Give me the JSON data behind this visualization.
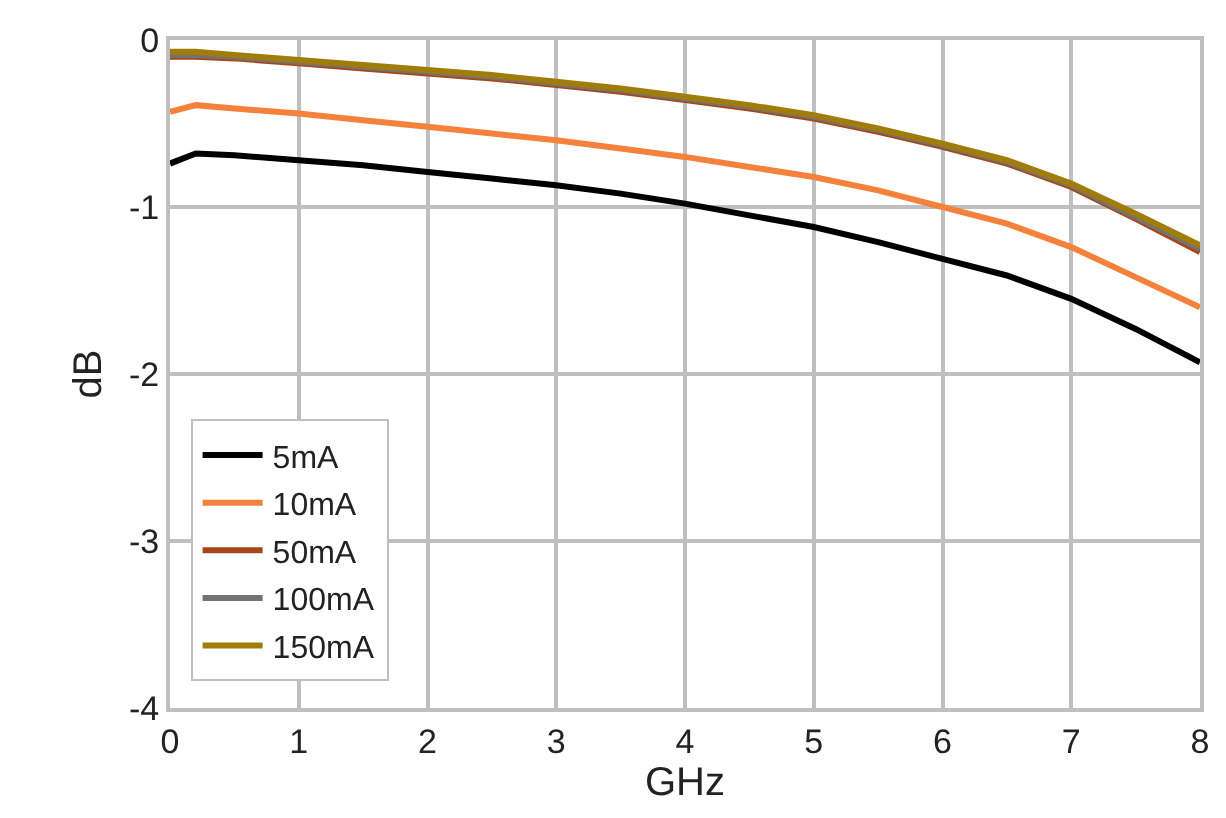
{
  "chart_data": {
    "type": "line",
    "xlabel": "GHz",
    "ylabel": "dB",
    "x": [
      0,
      0.2,
      0.5,
      1,
      1.5,
      2,
      2.5,
      3,
      3.5,
      4,
      4.5,
      5,
      5.5,
      6,
      6.5,
      7,
      7.5,
      8
    ],
    "xlim": [
      0,
      8
    ],
    "ylim": [
      -4,
      0
    ],
    "xticks": [
      0,
      1,
      2,
      3,
      4,
      5,
      6,
      7,
      8
    ],
    "yticks": [
      -4,
      -3,
      -2,
      -1,
      0
    ],
    "grid": true,
    "legend": "bottom left",
    "line_style": "solid",
    "marker": "none",
    "series": [
      {
        "name": "5mA",
        "color": "#000000",
        "values": [
          -0.74,
          -0.68,
          -0.69,
          -0.72,
          -0.75,
          -0.79,
          -0.83,
          -0.87,
          -0.92,
          -0.98,
          -1.05,
          -1.12,
          -1.21,
          -1.31,
          -1.41,
          -1.55,
          -1.73,
          -1.93
        ]
      },
      {
        "name": "10mA",
        "color": "#f4823c",
        "values": [
          -0.43,
          -0.39,
          -0.41,
          -0.44,
          -0.48,
          -0.52,
          -0.56,
          -0.6,
          -0.65,
          -0.7,
          -0.76,
          -0.82,
          -0.9,
          -1.0,
          -1.1,
          -1.24,
          -1.42,
          -1.6
        ]
      },
      {
        "name": "50mA",
        "color": "#a5471a",
        "values": [
          -0.1,
          -0.1,
          -0.11,
          -0.14,
          -0.17,
          -0.2,
          -0.23,
          -0.27,
          -0.31,
          -0.36,
          -0.41,
          -0.47,
          -0.55,
          -0.64,
          -0.74,
          -0.88,
          -1.07,
          -1.27
        ]
      },
      {
        "name": "100mA",
        "color": "#767171",
        "values": [
          -0.09,
          -0.09,
          -0.1,
          -0.13,
          -0.16,
          -0.19,
          -0.22,
          -0.26,
          -0.3,
          -0.35,
          -0.4,
          -0.46,
          -0.54,
          -0.63,
          -0.73,
          -0.87,
          -1.06,
          -1.25
        ]
      },
      {
        "name": "150mA",
        "color": "#a07c0a",
        "values": [
          -0.07,
          -0.07,
          -0.09,
          -0.12,
          -0.15,
          -0.18,
          -0.21,
          -0.25,
          -0.29,
          -0.34,
          -0.39,
          -0.45,
          -0.53,
          -0.62,
          -0.72,
          -0.86,
          -1.04,
          -1.23
        ]
      }
    ]
  }
}
